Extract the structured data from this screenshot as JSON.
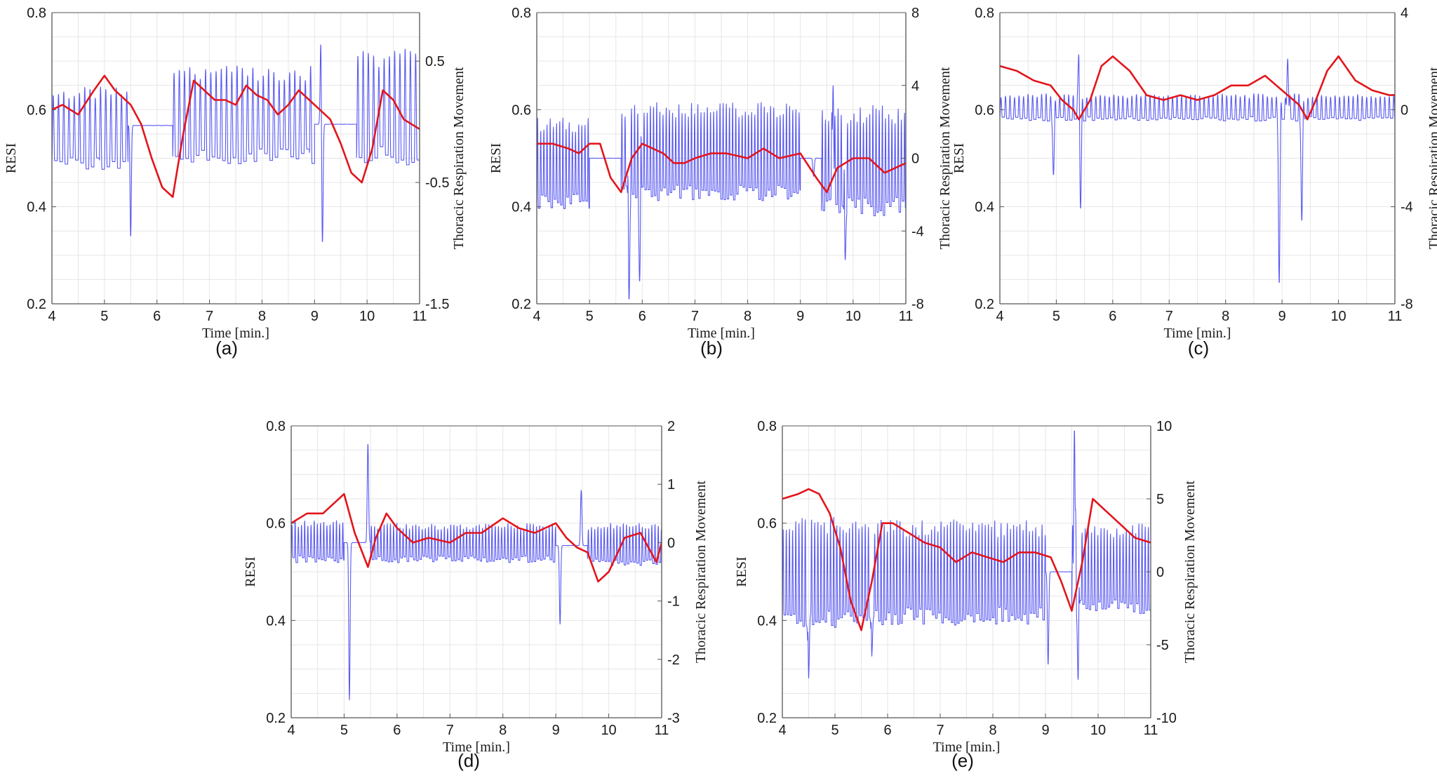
{
  "colors": {
    "resi": "#e3151b",
    "thoracic": "#3b3bf0",
    "grid": "#e6e6e6",
    "axes": "#555555"
  },
  "chart_data": [
    {
      "type": "line",
      "panel_label": "(a)",
      "xlabel": "Time [min.]",
      "ylabel": "RESI",
      "y2label": "Thoracic Respiration Movement",
      "xlim": [
        4,
        11
      ],
      "ylim": [
        0.2,
        0.8
      ],
      "y2lim": [
        -1.5,
        0.9
      ],
      "xticks": [
        "4",
        "5",
        "6",
        "7",
        "8",
        "9",
        "10",
        "11"
      ],
      "yticks": [
        "0.2",
        "0.4",
        "0.6",
        "0.8"
      ],
      "y2ticks": [
        {
          "v": -1.5,
          "t": "-1.5"
        },
        {
          "v": -0.5,
          "t": "-0.5"
        },
        {
          "v": 0.5,
          "t": "0.5"
        }
      ],
      "grid": true,
      "series": [
        {
          "axis": "left",
          "color": "#e3151b",
          "x": [
            4,
            4.2,
            4.5,
            4.8,
            5,
            5.2,
            5.5,
            5.7,
            5.9,
            6.1,
            6.3,
            6.5,
            6.7,
            6.9,
            7.1,
            7.3,
            7.5,
            7.7,
            7.9,
            8.1,
            8.3,
            8.5,
            8.7,
            8.9,
            9.1,
            9.3,
            9.5,
            9.7,
            9.9,
            10.1,
            10.3,
            10.5,
            10.7,
            11
          ],
          "y": [
            0.6,
            0.61,
            0.59,
            0.64,
            0.67,
            0.64,
            0.61,
            0.57,
            0.5,
            0.44,
            0.42,
            0.55,
            0.66,
            0.64,
            0.62,
            0.62,
            0.61,
            0.65,
            0.63,
            0.62,
            0.59,
            0.61,
            0.64,
            0.62,
            0.6,
            0.58,
            0.53,
            0.47,
            0.45,
            0.52,
            0.64,
            0.62,
            0.58,
            0.56
          ]
        },
        {
          "axis": "right",
          "color": "#3b3bf0",
          "segments": [
            {
              "x0": 4.0,
              "x1": 5.45,
              "osc_min": -0.35,
              "osc_max": 0.25,
              "period": 0.1
            },
            {
              "x0": 5.45,
              "x1": 6.3,
              "base": -0.03,
              "anomalies": [
                {
                  "x": 5.38,
                  "v": 0.5
                },
                {
                  "x": 5.5,
                  "v": -0.95
                }
              ]
            },
            {
              "x0": 6.3,
              "x1": 9.0,
              "osc_min": -0.3,
              "osc_max": 0.42,
              "period": 0.1
            },
            {
              "x0": 9.0,
              "x1": 9.8,
              "base": -0.02,
              "anomalies": [
                {
                  "x": 9.12,
                  "v": 0.72
                },
                {
                  "x": 9.15,
                  "v": -1.0
                }
              ]
            },
            {
              "x0": 9.8,
              "x1": 11.0,
              "osc_min": -0.3,
              "osc_max": 0.55,
              "period": 0.1
            }
          ]
        }
      ]
    },
    {
      "type": "line",
      "panel_label": "(b)",
      "xlabel": "Time [min.]",
      "ylabel": "RESI",
      "y2label": "Thoracic Respiration Movement",
      "xlim": [
        4,
        11
      ],
      "ylim": [
        0.2,
        0.8
      ],
      "y2lim": [
        -8,
        8
      ],
      "xticks": [
        "4",
        "5",
        "6",
        "7",
        "8",
        "9",
        "10",
        "11"
      ],
      "yticks": [
        "0.2",
        "0.4",
        "0.6",
        "0.8"
      ],
      "y2ticks": [
        {
          "v": -8,
          "t": "-8"
        },
        {
          "v": -4,
          "t": "-4"
        },
        {
          "v": 0,
          "t": "0"
        },
        {
          "v": 4,
          "t": "4"
        },
        {
          "v": 8,
          "t": "8"
        }
      ],
      "grid": true,
      "series": [
        {
          "axis": "left",
          "color": "#e3151b",
          "x": [
            4,
            4.3,
            4.6,
            4.8,
            5,
            5.2,
            5.4,
            5.6,
            5.8,
            6,
            6.2,
            6.4,
            6.6,
            6.8,
            7,
            7.3,
            7.6,
            8,
            8.3,
            8.6,
            9,
            9.3,
            9.5,
            9.7,
            10,
            10.3,
            10.6,
            11
          ],
          "y": [
            0.53,
            0.53,
            0.52,
            0.51,
            0.53,
            0.53,
            0.46,
            0.43,
            0.5,
            0.53,
            0.52,
            0.51,
            0.49,
            0.49,
            0.5,
            0.51,
            0.51,
            0.5,
            0.52,
            0.5,
            0.51,
            0.46,
            0.43,
            0.48,
            0.5,
            0.5,
            0.47,
            0.49
          ]
        },
        {
          "axis": "right",
          "color": "#3b3bf0",
          "segments": [
            {
              "x0": 4.0,
              "x1": 5.0,
              "osc_min": -2.5,
              "osc_max": 2.0,
              "period": 0.06
            },
            {
              "x0": 5.0,
              "x1": 5.6,
              "base": 0,
              "anomalies": []
            },
            {
              "x0": 5.6,
              "x1": 9.0,
              "osc_min": -2.0,
              "osc_max": 2.8,
              "period": 0.06,
              "anomalies": [
                {
                  "x": 5.75,
                  "v": -7.8
                },
                {
                  "x": 5.95,
                  "v": -6.8
                }
              ]
            },
            {
              "x0": 9.0,
              "x1": 9.4,
              "base": 0,
              "anomalies": [
                {
                  "x": 9.25,
                  "v": -1.0
                }
              ]
            },
            {
              "x0": 9.4,
              "x1": 11.0,
              "osc_min": -2.8,
              "osc_max": 2.6,
              "period": 0.06,
              "anomalies": [
                {
                  "x": 9.62,
                  "v": 4.0
                },
                {
                  "x": 9.85,
                  "v": -5.6
                }
              ]
            }
          ]
        }
      ]
    },
    {
      "type": "line",
      "panel_label": "(c)",
      "xlabel": "Time [min.]",
      "ylabel": "RESI",
      "y2label": "Thoracic Respiration Movement",
      "xlim": [
        4,
        11
      ],
      "ylim": [
        0.2,
        0.8
      ],
      "y2lim": [
        -8,
        4
      ],
      "xticks": [
        "4",
        "5",
        "6",
        "7",
        "8",
        "9",
        "10",
        "11"
      ],
      "yticks": [
        "0.2",
        "0.4",
        "0.6",
        "0.8"
      ],
      "y2ticks": [
        {
          "v": -8,
          "t": "-8"
        },
        {
          "v": -4,
          "t": "-4"
        },
        {
          "v": 0,
          "t": "0"
        },
        {
          "v": 4,
          "t": "4"
        }
      ],
      "grid": true,
      "series": [
        {
          "axis": "left",
          "color": "#e3151b",
          "x": [
            4,
            4.3,
            4.6,
            4.9,
            5.1,
            5.3,
            5.4,
            5.6,
            5.8,
            6,
            6.3,
            6.6,
            6.9,
            7.2,
            7.5,
            7.8,
            8.1,
            8.4,
            8.7,
            8.9,
            9.1,
            9.3,
            9.45,
            9.6,
            9.8,
            10,
            10.3,
            10.6,
            10.9,
            11
          ],
          "y": [
            0.69,
            0.68,
            0.66,
            0.65,
            0.62,
            0.6,
            0.58,
            0.62,
            0.69,
            0.71,
            0.68,
            0.63,
            0.62,
            0.63,
            0.62,
            0.63,
            0.65,
            0.65,
            0.67,
            0.65,
            0.63,
            0.61,
            0.58,
            0.62,
            0.68,
            0.71,
            0.66,
            0.64,
            0.63,
            0.63
          ]
        },
        {
          "axis": "right",
          "color": "#3b3bf0",
          "segments": [
            {
              "x0": 4.0,
              "x1": 11.0,
              "osc_min": -0.4,
              "osc_max": 0.6,
              "period": 0.08,
              "anomalies": [
                {
                  "x": 4.95,
                  "v": -2.7
                },
                {
                  "x": 5.4,
                  "v": 2.6
                },
                {
                  "x": 5.43,
                  "v": -4.1
                },
                {
                  "x": 8.95,
                  "v": -7.2
                },
                {
                  "x": 9.1,
                  "v": 2.1
                },
                {
                  "x": 9.35,
                  "v": -4.6
                }
              ]
            }
          ]
        }
      ]
    },
    {
      "type": "line",
      "panel_label": "(d)",
      "xlabel": "Time [min.]",
      "ylabel": "RESI",
      "y2label": "Thoracic Respiration Movement",
      "xlim": [
        4,
        11
      ],
      "ylim": [
        0.2,
        0.8
      ],
      "y2lim": [
        -3,
        2
      ],
      "xticks": [
        "4",
        "5",
        "6",
        "7",
        "8",
        "9",
        "10",
        "11"
      ],
      "yticks": [
        "0.2",
        "0.4",
        "0.6",
        "0.8"
      ],
      "y2ticks": [
        {
          "v": -3,
          "t": "-3"
        },
        {
          "v": -2,
          "t": "-2"
        },
        {
          "v": -1,
          "t": "-1"
        },
        {
          "v": 0,
          "t": "0"
        },
        {
          "v": 1,
          "t": "1"
        },
        {
          "v": 2,
          "t": "2"
        }
      ],
      "grid": true,
      "series": [
        {
          "axis": "left",
          "color": "#e3151b",
          "x": [
            4,
            4.3,
            4.6,
            4.8,
            5,
            5.2,
            5.45,
            5.6,
            5.8,
            6,
            6.3,
            6.6,
            7,
            7.3,
            7.6,
            8,
            8.3,
            8.6,
            9,
            9.2,
            9.4,
            9.6,
            9.8,
            10,
            10.3,
            10.6,
            10.9,
            11
          ],
          "y": [
            0.6,
            0.62,
            0.62,
            0.64,
            0.66,
            0.58,
            0.51,
            0.57,
            0.62,
            0.59,
            0.56,
            0.57,
            0.56,
            0.58,
            0.58,
            0.61,
            0.59,
            0.58,
            0.6,
            0.57,
            0.55,
            0.54,
            0.48,
            0.5,
            0.57,
            0.58,
            0.52,
            0.56
          ]
        },
        {
          "axis": "right",
          "color": "#3b3bf0",
          "segments": [
            {
              "x0": 4.0,
              "x1": 5.0,
              "osc_min": -0.3,
              "osc_max": 0.35,
              "period": 0.06
            },
            {
              "x0": 5.0,
              "x1": 5.5,
              "base": 0,
              "anomalies": [
                {
                  "x": 5.1,
                  "v": -2.7
                },
                {
                  "x": 5.45,
                  "v": 1.7
                }
              ]
            },
            {
              "x0": 5.5,
              "x1": 9.0,
              "osc_min": -0.3,
              "osc_max": 0.3,
              "period": 0.06
            },
            {
              "x0": 9.0,
              "x1": 9.6,
              "base": -0.05,
              "anomalies": [
                {
                  "x": 9.08,
                  "v": -1.4
                },
                {
                  "x": 9.48,
                  "v": 0.9
                }
              ]
            },
            {
              "x0": 9.6,
              "x1": 11.0,
              "osc_min": -0.35,
              "osc_max": 0.3,
              "period": 0.06
            }
          ]
        }
      ]
    },
    {
      "type": "line",
      "panel_label": "(e)",
      "xlabel": "Time [min.]",
      "ylabel": "RESI",
      "y2label": "Thoracic Respiration Movement",
      "xlim": [
        4,
        11
      ],
      "ylim": [
        0.2,
        0.8
      ],
      "y2lim": [
        -10,
        10
      ],
      "xticks": [
        "4",
        "5",
        "6",
        "7",
        "8",
        "9",
        "10",
        "11"
      ],
      "yticks": [
        "0.2",
        "0.4",
        "0.6",
        "0.8"
      ],
      "y2ticks": [
        {
          "v": -10,
          "t": "-10"
        },
        {
          "v": -5,
          "t": "-5"
        },
        {
          "v": 0,
          "t": "0"
        },
        {
          "v": 5,
          "t": "5"
        },
        {
          "v": 10,
          "t": "10"
        }
      ],
      "grid": true,
      "series": [
        {
          "axis": "left",
          "color": "#e3151b",
          "x": [
            4,
            4.3,
            4.5,
            4.7,
            4.9,
            5.1,
            5.3,
            5.5,
            5.7,
            5.9,
            6.1,
            6.4,
            6.7,
            7,
            7.3,
            7.6,
            7.9,
            8.2,
            8.5,
            8.8,
            9.1,
            9.3,
            9.5,
            9.7,
            9.9,
            10.1,
            10.4,
            10.7,
            11
          ],
          "y": [
            0.65,
            0.66,
            0.67,
            0.66,
            0.62,
            0.55,
            0.44,
            0.38,
            0.48,
            0.6,
            0.6,
            0.58,
            0.56,
            0.55,
            0.52,
            0.54,
            0.53,
            0.52,
            0.54,
            0.54,
            0.53,
            0.48,
            0.42,
            0.52,
            0.65,
            0.63,
            0.6,
            0.57,
            0.56
          ]
        },
        {
          "axis": "right",
          "color": "#3b3bf0",
          "segments": [
            {
              "x0": 4.0,
              "x1": 5.2,
              "osc_min": -3.5,
              "osc_max": 3.5,
              "period": 0.06,
              "anomalies": [
                {
                  "x": 4.5,
                  "v": -7.3
                }
              ]
            },
            {
              "x0": 5.2,
              "x1": 9.0,
              "osc_min": -3.2,
              "osc_max": 3.2,
              "period": 0.06,
              "anomalies": [
                {
                  "x": 5.7,
                  "v": -5.8
                }
              ]
            },
            {
              "x0": 9.0,
              "x1": 9.5,
              "base": 0,
              "anomalies": [
                {
                  "x": 9.05,
                  "v": -6.4
                }
              ]
            },
            {
              "x0": 9.5,
              "x1": 11.0,
              "osc_min": -2.5,
              "osc_max": 3.0,
              "period": 0.06,
              "anomalies": [
                {
                  "x": 9.55,
                  "v": 9.8
                },
                {
                  "x": 9.62,
                  "v": -7.4
                }
              ]
            }
          ]
        }
      ]
    }
  ]
}
